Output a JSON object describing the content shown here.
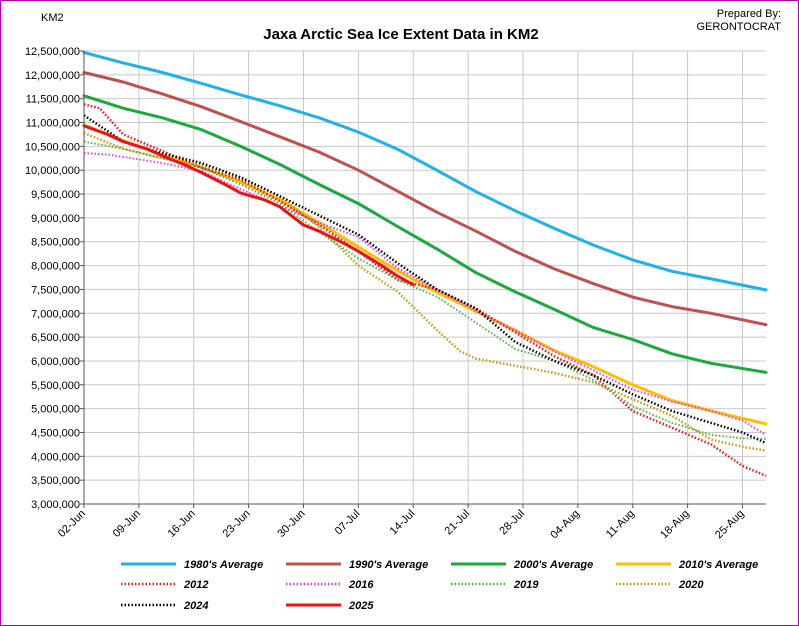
{
  "chart_data": {
    "type": "line",
    "title": "Jaxa Arctic Sea Ice Extent Data in KM2",
    "ylabel": "KM2",
    "credit": [
      "Prepared By:",
      "GERONTOCRAT"
    ],
    "ylim": [
      3000000,
      12500000
    ],
    "y_ticks": [
      "3,000,000",
      "3,500,000",
      "4,000,000",
      "4,500,000",
      "5,000,000",
      "5,500,000",
      "6,000,000",
      "6,500,000",
      "7,000,000",
      "7,500,000",
      "8,000,000",
      "8,500,000",
      "9,000,000",
      "9,500,000",
      "10,000,000",
      "10,500,000",
      "11,000,000",
      "11,500,000",
      "12,000,000",
      "12,500,000"
    ],
    "x_ticks": [
      "02-Jun",
      "09-Jun",
      "16-Jun",
      "23-Jun",
      "30-Jun",
      "07-Jul",
      "14-Jul",
      "21-Jul",
      "28-Jul",
      "04-Aug",
      "11-Aug",
      "18-Aug",
      "25-Aug"
    ],
    "x_days": [
      0,
      7,
      14,
      21,
      28,
      35,
      42,
      49,
      56,
      63,
      70,
      77,
      84
    ],
    "day_span": 87,
    "grid": true,
    "legend_position": "bottom",
    "series": [
      {
        "name": "1980's Average",
        "color": "#1fb1ea",
        "style": "solid",
        "width": 3,
        "x": [
          0,
          5,
          10,
          15,
          20,
          25,
          30,
          35,
          40,
          45,
          50,
          55,
          60,
          65,
          70,
          75,
          80,
          87
        ],
        "y": [
          12470000,
          12250000,
          12050000,
          11820000,
          11580000,
          11350000,
          11100000,
          10800000,
          10440000,
          10000000,
          9550000,
          9150000,
          8780000,
          8430000,
          8120000,
          7880000,
          7720000,
          7490000
        ]
      },
      {
        "name": "1990's Average",
        "color": "#c0504d",
        "style": "solid",
        "width": 3,
        "x": [
          0,
          5,
          10,
          15,
          20,
          25,
          30,
          35,
          40,
          45,
          50,
          55,
          60,
          65,
          70,
          75,
          80,
          87
        ],
        "y": [
          12050000,
          11850000,
          11600000,
          11330000,
          11020000,
          10700000,
          10380000,
          10000000,
          9560000,
          9120000,
          8720000,
          8300000,
          7930000,
          7620000,
          7340000,
          7140000,
          7000000,
          6760000
        ]
      },
      {
        "name": "2000's Average",
        "color": "#1aa93b",
        "style": "solid",
        "width": 3,
        "x": [
          0,
          5,
          10,
          15,
          20,
          25,
          30,
          35,
          40,
          45,
          50,
          55,
          60,
          65,
          70,
          75,
          80,
          87
        ],
        "y": [
          11560000,
          11300000,
          11100000,
          10850000,
          10500000,
          10120000,
          9700000,
          9300000,
          8820000,
          8350000,
          7850000,
          7450000,
          7080000,
          6700000,
          6450000,
          6150000,
          5950000,
          5760000
        ]
      },
      {
        "name": "2010's Average",
        "color": "#ffbe00",
        "style": "solid",
        "width": 3,
        "x": [
          0,
          5,
          10,
          15,
          20,
          25,
          30,
          35,
          40,
          45,
          50,
          55,
          60,
          65,
          70,
          75,
          80,
          87
        ],
        "y": [
          10950000,
          10620000,
          10320000,
          10060000,
          9750000,
          9380000,
          8900000,
          8390000,
          7890000,
          7440000,
          7040000,
          6640000,
          6220000,
          5880000,
          5500000,
          5170000,
          4950000,
          4680000
        ]
      },
      {
        "name": "2012",
        "color": "#e8161b",
        "style": "dot",
        "width": 2.5,
        "x": [
          0,
          2,
          5,
          10,
          15,
          20,
          25,
          30,
          35,
          40,
          45,
          50,
          55,
          60,
          65,
          70,
          75,
          80,
          84,
          87
        ],
        "y": [
          11380000,
          11300000,
          10750000,
          10400000,
          10050000,
          9800000,
          9350000,
          8850000,
          8300000,
          7700000,
          7500000,
          7100000,
          6600000,
          6100000,
          5700000,
          4950000,
          4600000,
          4250000,
          3800000,
          3590000
        ]
      },
      {
        "name": "2016",
        "color": "#e03ee6",
        "style": "dot",
        "width": 2,
        "x": [
          0,
          3,
          5,
          10,
          15,
          20,
          25,
          30,
          35,
          40,
          45,
          50,
          55,
          60,
          65,
          70,
          75,
          80,
          84,
          87
        ],
        "y": [
          10360000,
          10330000,
          10280000,
          10150000,
          9980000,
          9600000,
          9250000,
          8900000,
          8600000,
          7950000,
          7500000,
          7050000,
          6650000,
          6200000,
          5800000,
          5400000,
          5150000,
          4950000,
          4750000,
          4450000
        ]
      },
      {
        "name": "2019",
        "color": "#52b240",
        "style": "dot",
        "width": 2,
        "x": [
          0,
          5,
          10,
          15,
          20,
          25,
          30,
          35,
          40,
          45,
          50,
          55,
          60,
          65,
          70,
          75,
          80,
          84,
          87
        ],
        "y": [
          10600000,
          10450000,
          10250000,
          10050000,
          9700000,
          9300000,
          8700000,
          8150000,
          7700000,
          7350000,
          6800000,
          6250000,
          6000000,
          5600000,
          5050000,
          4700000,
          4450000,
          4380000,
          4370000
        ]
      },
      {
        "name": "2020",
        "color": "#c89a10",
        "style": "dot",
        "width": 2.5,
        "x": [
          0,
          5,
          10,
          15,
          20,
          25,
          30,
          35,
          40,
          45,
          48,
          50,
          55,
          60,
          65,
          70,
          75,
          80,
          84,
          87
        ],
        "y": [
          10780000,
          10450000,
          10250000,
          10100000,
          9850000,
          9450000,
          8800000,
          8000000,
          7450000,
          6650000,
          6200000,
          6050000,
          5900000,
          5750000,
          5550000,
          5200000,
          4850000,
          4350000,
          4200000,
          4120000
        ]
      },
      {
        "name": "2024",
        "color": "#000000",
        "style": "dot",
        "width": 2.5,
        "x": [
          0,
          5,
          10,
          15,
          20,
          25,
          30,
          35,
          40,
          45,
          50,
          55,
          60,
          65,
          70,
          75,
          80,
          84,
          87
        ],
        "y": [
          11150000,
          10600000,
          10350000,
          10150000,
          9850000,
          9450000,
          9050000,
          8650000,
          8050000,
          7500000,
          7100000,
          6400000,
          6000000,
          5700000,
          5300000,
          4950000,
          4700000,
          4500000,
          4280000
        ]
      },
      {
        "name": "2025",
        "color": "#f01010",
        "style": "solid",
        "width": 3,
        "x": [
          0,
          3,
          5,
          8,
          10,
          13,
          15,
          18,
          20,
          23,
          25,
          28,
          30,
          33,
          35,
          38,
          40,
          42
        ],
        "y": [
          10930000,
          10750000,
          10600000,
          10450000,
          10300000,
          10100000,
          9950000,
          9700000,
          9520000,
          9380000,
          9230000,
          8850000,
          8720000,
          8480000,
          8300000,
          8000000,
          7780000,
          7600000
        ]
      }
    ]
  }
}
